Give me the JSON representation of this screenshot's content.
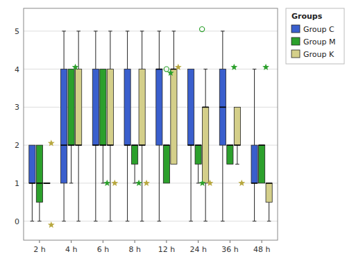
{
  "chart_data": {
    "type": "box",
    "categories": [
      "2 h",
      "4 h",
      "6 h",
      "8 h",
      "12 h",
      "24 h",
      "36 h",
      "48 h"
    ],
    "ylim": [
      -0.5,
      5.6
    ],
    "yticks": [
      0,
      1,
      2,
      3,
      4,
      5
    ],
    "grid": true,
    "legend": "upper right",
    "legend_title": "Groups",
    "series": [
      {
        "name": "Group C",
        "color": "#3a5fcd",
        "values": [
          {
            "q1": 1.0,
            "median": 1.0,
            "q3": 2.0,
            "whislo": 0.0,
            "whishi": 2.0
          },
          {
            "q1": 1.0,
            "median": 2.0,
            "q3": 4.0,
            "whislo": 0.0,
            "whishi": 5.0
          },
          {
            "q1": 2.0,
            "median": 2.0,
            "q3": 4.0,
            "whislo": 0.0,
            "whishi": 5.0
          },
          {
            "q1": 2.0,
            "median": 2.0,
            "q3": 4.0,
            "whislo": 0.0,
            "whishi": 5.0
          },
          {
            "q1": 2.0,
            "median": 4.0,
            "q3": 4.0,
            "whislo": 0.0,
            "whishi": 5.0
          },
          {
            "q1": 2.0,
            "median": 2.0,
            "q3": 4.0,
            "whislo": 0.0,
            "whishi": 4.0
          },
          {
            "q1": 2.0,
            "median": 3.0,
            "q3": 4.0,
            "whislo": 0.0,
            "whishi": 5.0
          },
          {
            "q1": 1.0,
            "median": 1.0,
            "q3": 2.0,
            "whislo": 0.0,
            "whishi": 4.0
          }
        ]
      },
      {
        "name": "Group M",
        "color": "#2ca02c",
        "values": [
          {
            "q1": 0.5,
            "median": 1.0,
            "q3": 2.0,
            "whislo": 0.0,
            "whishi": 2.0
          },
          {
            "q1": 2.0,
            "median": 2.0,
            "q3": 4.0,
            "whislo": 1.0,
            "whishi": 4.0
          },
          {
            "q1": 2.0,
            "median": 2.0,
            "q3": 4.0,
            "whislo": 1.0,
            "whishi": 4.0
          },
          {
            "q1": 1.5,
            "median": 2.0,
            "q3": 2.0,
            "whislo": 1.0,
            "whishi": 2.0
          },
          {
            "q1": 1.0,
            "median": 2.0,
            "q3": 2.0,
            "whislo": 1.0,
            "whishi": 2.0
          },
          {
            "q1": 1.5,
            "median": 2.0,
            "q3": 2.0,
            "whislo": 1.0,
            "whishi": 2.0
          },
          {
            "q1": 1.5,
            "median": 2.0,
            "q3": 2.0,
            "whislo": 1.5,
            "whishi": 2.0
          },
          {
            "q1": 1.0,
            "median": 2.0,
            "q3": 2.0,
            "whislo": 1.0,
            "whishi": 2.0
          }
        ]
      },
      {
        "name": "Group K",
        "color": "#d4cf8a",
        "values": [
          {
            "q1": 1.0,
            "median": 1.0,
            "q3": 1.0,
            "whislo": 1.0,
            "whishi": 1.0
          },
          {
            "q1": 2.0,
            "median": 2.0,
            "q3": 4.0,
            "whislo": 0.0,
            "whishi": 5.0
          },
          {
            "q1": 2.0,
            "median": 2.0,
            "q3": 4.0,
            "whislo": 0.0,
            "whishi": 5.0
          },
          {
            "q1": 2.0,
            "median": 2.0,
            "q3": 4.0,
            "whislo": 0.0,
            "whishi": 5.0
          },
          {
            "q1": 1.5,
            "median": 4.0,
            "q3": 4.0,
            "whislo": 1.5,
            "whishi": 5.0
          },
          {
            "q1": 1.0,
            "median": 3.0,
            "q3": 3.0,
            "whislo": 0.0,
            "whishi": 4.0
          },
          {
            "q1": 2.0,
            "median": 2.0,
            "q3": 3.0,
            "whislo": 1.5,
            "whishi": 3.0
          },
          {
            "q1": 0.5,
            "median": 1.0,
            "q3": 1.0,
            "whislo": 0.0,
            "whishi": 1.0
          }
        ]
      },
      {
        "type": "scatter",
        "marker": "star",
        "color": "#2ca02c",
        "x": [
          "4 h",
          "6 h",
          "8 h",
          "12 h",
          "24 h",
          "36 h",
          "48 h"
        ],
        "values": [
          4.05,
          1.0,
          1.0,
          3.9,
          1.0,
          4.05,
          4.05
        ]
      },
      {
        "type": "scatter",
        "marker": "star",
        "color": "#b8a840",
        "x": [
          "2 h",
          "6 h",
          "8 h",
          "12 h",
          "24 h",
          "36 h"
        ],
        "values": [
          2.05,
          1.0,
          1.0,
          4.05,
          1.0,
          1.0
        ]
      },
      {
        "type": "scatter",
        "marker": "star",
        "color": "#b8a840",
        "x": [
          "2 h"
        ],
        "values": [
          -0.1
        ]
      },
      {
        "type": "scatter",
        "marker": "circle",
        "color": "#2ca02c",
        "x": [
          "24 h"
        ],
        "values": [
          5.05
        ]
      },
      {
        "type": "scatter",
        "marker": "circle",
        "color": "#2ca02c",
        "x": [
          "12 h"
        ],
        "values": [
          4.0
        ]
      }
    ]
  }
}
